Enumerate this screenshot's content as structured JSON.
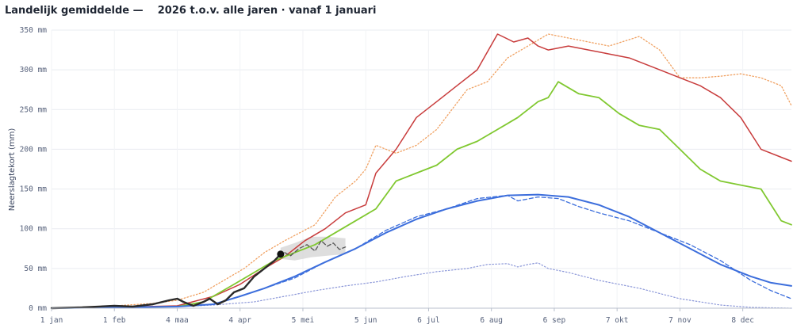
{
  "title": "Landelijk gemiddelde —    2026 t.o.v. alle jaren · vanaf 1 januari",
  "chart_data": {
    "type": "line",
    "ylabel": "Neerslagtekort (mm)",
    "ylim": [
      0,
      350
    ],
    "yticks": [
      0,
      50,
      100,
      150,
      200,
      250,
      300,
      350
    ],
    "ytick_labels": [
      "0 mm",
      "50 mm",
      "100 mm",
      "150 mm",
      "200 mm",
      "250 mm",
      "300 mm",
      "350 mm"
    ],
    "xlim": [
      0,
      365
    ],
    "xticks": [
      {
        "day": 0,
        "label": "1 jan"
      },
      {
        "day": 31,
        "label": "1 feb"
      },
      {
        "day": 62,
        "label": "4 maa"
      },
      {
        "day": 93,
        "label": "4 apr"
      },
      {
        "day": 124,
        "label": "5 mei"
      },
      {
        "day": 155,
        "label": "5 jun"
      },
      {
        "day": 186,
        "label": "6 jul"
      },
      {
        "day": 217,
        "label": "6 aug"
      },
      {
        "day": 248,
        "label": "6 sep"
      },
      {
        "day": 279,
        "label": "7 okt"
      },
      {
        "day": 310,
        "label": "7 nov"
      },
      {
        "day": 341,
        "label": "8 dec"
      }
    ],
    "grid": true,
    "series": [
      {
        "color": "#8a96d8",
        "style": "dotted",
        "width": 1.2,
        "x": [
          0,
          31,
          62,
          80,
          100,
          115,
          130,
          145,
          160,
          175,
          190,
          205,
          215,
          225,
          230,
          235,
          240,
          245,
          255,
          270,
          290,
          310,
          330,
          345,
          365
        ],
        "y": [
          0,
          1,
          2,
          4,
          8,
          15,
          22,
          28,
          33,
          40,
          46,
          50,
          55,
          56,
          52,
          55,
          57,
          50,
          45,
          35,
          25,
          12,
          4,
          1,
          0
        ]
      },
      {
        "color": "#f0a060",
        "style": "dotted",
        "width": 1.3,
        "x": [
          0,
          31,
          50,
          62,
          75,
          85,
          95,
          105,
          115,
          130,
          140,
          150,
          155,
          160,
          170,
          180,
          190,
          205,
          215,
          225,
          235,
          245,
          255,
          265,
          275,
          285,
          290,
          300,
          310,
          320,
          330,
          340,
          350,
          360,
          365
        ],
        "y": [
          0,
          3,
          6,
          10,
          20,
          35,
          50,
          70,
          85,
          105,
          140,
          160,
          175,
          205,
          195,
          205,
          225,
          275,
          285,
          315,
          330,
          345,
          340,
          335,
          330,
          338,
          342,
          325,
          290,
          290,
          292,
          295,
          290,
          280,
          255
        ]
      },
      {
        "color": "#c83c3c",
        "style": "solid",
        "width": 1.5,
        "x": [
          0,
          31,
          62,
          80,
          93,
          105,
          115,
          125,
          135,
          145,
          155,
          160,
          170,
          180,
          190,
          200,
          210,
          220,
          228,
          235,
          240,
          245,
          255,
          265,
          275,
          285,
          290,
          300,
          310,
          320,
          330,
          340,
          350,
          360,
          365
        ],
        "y": [
          0,
          1,
          3,
          15,
          30,
          50,
          65,
          85,
          100,
          120,
          130,
          170,
          200,
          240,
          260,
          280,
          300,
          345,
          335,
          340,
          330,
          325,
          330,
          325,
          320,
          315,
          310,
          300,
          290,
          280,
          265,
          240,
          200,
          190,
          185
        ]
      },
      {
        "color": "#80c830",
        "style": "solid",
        "width": 1.8,
        "x": [
          0,
          31,
          62,
          75,
          90,
          100,
          110,
          120,
          130,
          140,
          150,
          160,
          170,
          180,
          190,
          200,
          210,
          220,
          230,
          240,
          245,
          250,
          260,
          270,
          280,
          290,
          300,
          310,
          320,
          330,
          340,
          350,
          360,
          365
        ],
        "y": [
          0,
          1,
          2,
          8,
          30,
          45,
          60,
          70,
          80,
          95,
          110,
          125,
          160,
          170,
          180,
          200,
          210,
          225,
          240,
          260,
          265,
          285,
          270,
          265,
          245,
          230,
          225,
          200,
          175,
          160,
          155,
          150,
          110,
          105
        ]
      },
      {
        "color": "#3c6edc",
        "style": "solid",
        "width": 2,
        "x": [
          0,
          31,
          62,
          80,
          93,
          105,
          120,
          135,
          150,
          165,
          180,
          195,
          210,
          225,
          240,
          255,
          270,
          285,
          300,
          315,
          330,
          345,
          355,
          365
        ],
        "y": [
          0,
          1,
          2,
          5,
          15,
          25,
          40,
          58,
          75,
          95,
          112,
          125,
          135,
          142,
          143,
          140,
          130,
          115,
          95,
          75,
          55,
          40,
          32,
          28
        ]
      },
      {
        "color": "#3c6edc",
        "style": "dashed",
        "width": 1.3,
        "x": [
          0,
          31,
          62,
          80,
          93,
          105,
          120,
          135,
          150,
          165,
          180,
          195,
          210,
          225,
          230,
          240,
          250,
          260,
          270,
          285,
          300,
          315,
          330,
          345,
          355,
          365
        ],
        "y": [
          0,
          1,
          2,
          5,
          15,
          25,
          38,
          58,
          75,
          98,
          115,
          125,
          138,
          142,
          135,
          140,
          138,
          128,
          120,
          110,
          95,
          80,
          60,
          35,
          22,
          12
        ]
      },
      {
        "color": "#555555",
        "style": "dashed",
        "width": 1.3,
        "x": [
          115,
          118,
          122,
          126,
          130,
          133,
          136,
          139,
          142,
          145
        ],
        "y": [
          70,
          66,
          75,
          80,
          72,
          85,
          78,
          82,
          74,
          77
        ]
      },
      {
        "color": "#2a2a2a",
        "style": "solid",
        "width": 2.4,
        "x": [
          0,
          15,
          31,
          40,
          50,
          58,
          62,
          65,
          70,
          75,
          78,
          82,
          86,
          90,
          95,
          100,
          105,
          110,
          113
        ],
        "y": [
          0,
          1,
          3,
          2,
          5,
          10,
          12,
          8,
          3,
          8,
          12,
          5,
          10,
          20,
          25,
          40,
          50,
          60,
          68
        ]
      }
    ],
    "band": {
      "color": "#d6d6d6",
      "x": [
        113,
        120,
        128,
        136,
        145
      ],
      "lower": [
        62,
        60,
        64,
        66,
        68
      ],
      "upper": [
        76,
        82,
        90,
        90,
        88
      ]
    },
    "marker": {
      "x": 113,
      "y": 68,
      "color": "#111111"
    }
  }
}
